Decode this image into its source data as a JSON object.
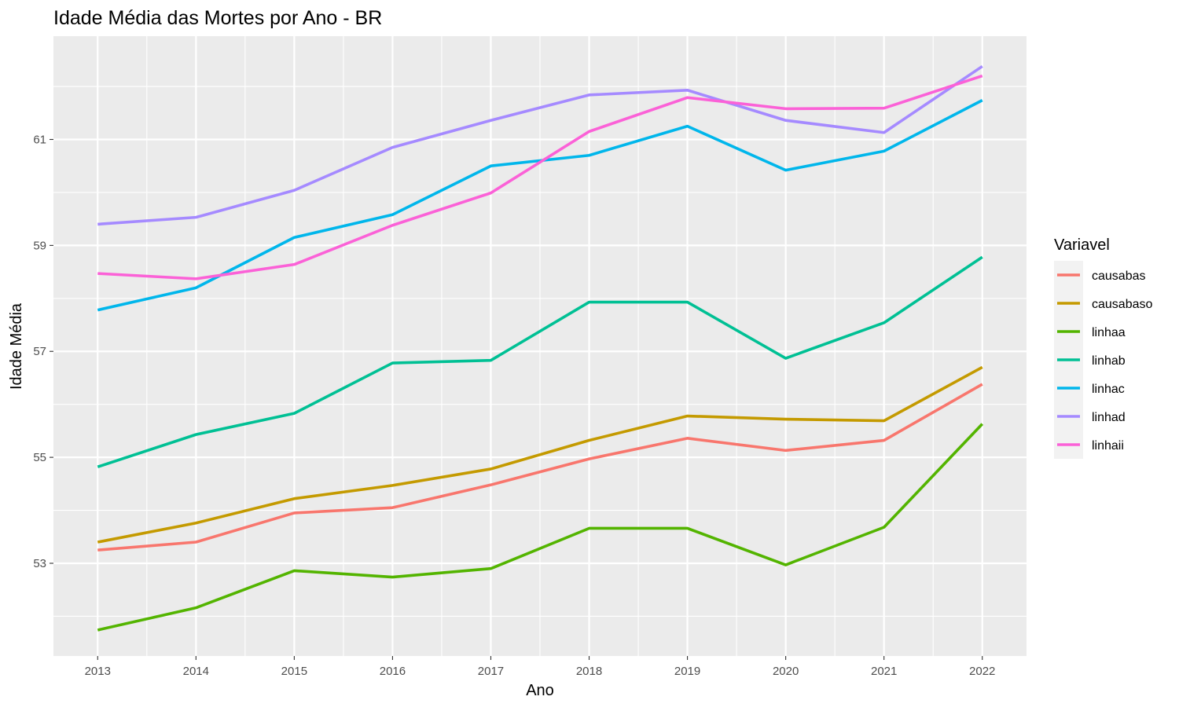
{
  "chart_data": {
    "type": "line",
    "title": "Idade Média das Mortes por Ano - BR",
    "xlabel": "Ano",
    "ylabel": "Idade Média",
    "x": [
      2013,
      2014,
      2015,
      2016,
      2017,
      2018,
      2019,
      2020,
      2021,
      2022
    ],
    "xlim": [
      2012.55,
      2022.45
    ],
    "ylim": [
      51.25,
      62.95
    ],
    "yticks": [
      53,
      55,
      57,
      59,
      61
    ],
    "grid": true,
    "legend": {
      "title": "Variavel",
      "position": "right"
    },
    "series": [
      {
        "name": "causabas",
        "color": "#F8766D",
        "values": [
          53.25,
          53.4,
          53.95,
          54.05,
          54.48,
          54.97,
          55.36,
          55.13,
          55.32,
          56.38
        ]
      },
      {
        "name": "causabaso",
        "color": "#C49A00",
        "values": [
          53.4,
          53.76,
          54.22,
          54.47,
          54.78,
          55.32,
          55.78,
          55.72,
          55.69,
          56.7
        ]
      },
      {
        "name": "linhaa",
        "color": "#53B400",
        "values": [
          51.74,
          52.16,
          52.86,
          52.74,
          52.9,
          53.66,
          53.66,
          52.97,
          53.68,
          55.63
        ]
      },
      {
        "name": "linhab",
        "color": "#00C094",
        "values": [
          54.82,
          55.43,
          55.83,
          56.78,
          56.83,
          57.93,
          57.93,
          56.87,
          57.54,
          58.78
        ]
      },
      {
        "name": "linhac",
        "color": "#00B6EB",
        "values": [
          57.78,
          58.2,
          59.15,
          59.58,
          60.5,
          60.7,
          61.25,
          60.42,
          60.78,
          61.74
        ]
      },
      {
        "name": "linhad",
        "color": "#A58AFF",
        "values": [
          59.4,
          59.53,
          60.04,
          60.85,
          61.36,
          61.84,
          61.93,
          61.36,
          61.13,
          62.38
        ]
      },
      {
        "name": "linhaii",
        "color": "#FB61D7",
        "values": [
          58.47,
          58.37,
          58.64,
          59.38,
          59.99,
          61.15,
          61.79,
          61.58,
          61.59,
          62.2
        ]
      }
    ]
  }
}
